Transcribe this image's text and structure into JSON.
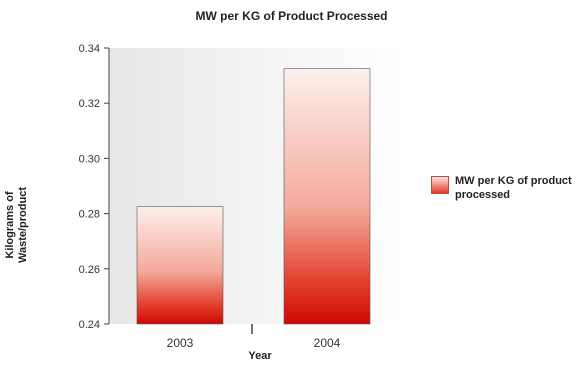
{
  "chart_data": {
    "type": "bar",
    "title": "MW per KG of Product Processed",
    "xlabel": "Year",
    "ylabel_lines": [
      "Kilograms of",
      "Waste/product"
    ],
    "categories": [
      "2003",
      "2004"
    ],
    "series": [
      {
        "name": "MW per KG of product processed",
        "values": [
          0.2825,
          0.3325
        ]
      }
    ],
    "ylim": [
      0.24,
      0.34
    ],
    "yticks": [
      "0.24",
      "0.26",
      "0.28",
      "0.30",
      "0.32",
      "0.34"
    ],
    "grid": false,
    "legend_position": "right",
    "colors": {
      "bar_top": "#fde9e3",
      "bar_bottom": "#d40f0a",
      "plot_bg_left": "#e9e9e9",
      "plot_bg_right": "#ffffff"
    }
  }
}
